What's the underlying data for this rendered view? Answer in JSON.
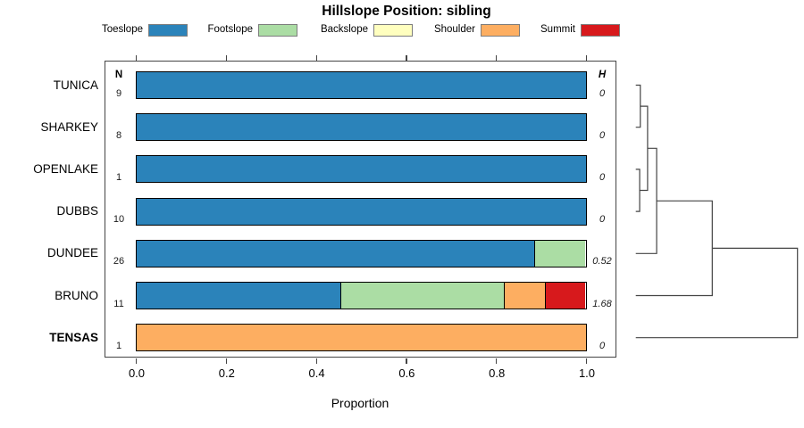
{
  "title": "Hillslope Position: sibling",
  "axis": {
    "xlabel": "Proportion",
    "tick_labels": [
      "0.0",
      "0.2",
      "0.4",
      "0.6",
      "0.8",
      "1.0"
    ]
  },
  "columns": {
    "n_header": "N",
    "h_header": "H"
  },
  "legend": {
    "items": [
      {
        "label": "Toeslope",
        "color": "#2B83BA"
      },
      {
        "label": "Footslope",
        "color": "#ABDDA4"
      },
      {
        "label": "Backslope",
        "color": "#FFFFBF"
      },
      {
        "label": "Shoulder",
        "color": "#FDAE61"
      },
      {
        "label": "Summit",
        "color": "#D7191C"
      }
    ]
  },
  "chart_data": {
    "type": "bar",
    "stacked": true,
    "orientation": "horizontal",
    "title": "Hillslope Position: sibling",
    "xlabel": "Proportion",
    "xlim": [
      0,
      1
    ],
    "xticks": [
      0.0,
      0.2,
      0.4,
      0.6,
      0.8,
      1.0
    ],
    "grid": false,
    "categories": [
      "Toeslope",
      "Footslope",
      "Backslope",
      "Shoulder",
      "Summit"
    ],
    "category_colors": {
      "Toeslope": "#2B83BA",
      "Footslope": "#ABDDA4",
      "Backslope": "#FFFFBF",
      "Shoulder": "#FDAE61",
      "Summit": "#D7191C"
    },
    "rows": [
      {
        "label": "TUNICA",
        "bold": false,
        "n": "9",
        "h": "0",
        "segments": [
          {
            "category": "Toeslope",
            "proportion": 1.0
          }
        ]
      },
      {
        "label": "SHARKEY",
        "bold": false,
        "n": "8",
        "h": "0",
        "segments": [
          {
            "category": "Toeslope",
            "proportion": 1.0
          }
        ]
      },
      {
        "label": "OPENLAKE",
        "bold": false,
        "n": "1",
        "h": "0",
        "segments": [
          {
            "category": "Toeslope",
            "proportion": 1.0
          }
        ]
      },
      {
        "label": "DUBBS",
        "bold": false,
        "n": "10",
        "h": "0",
        "segments": [
          {
            "category": "Toeslope",
            "proportion": 1.0
          }
        ]
      },
      {
        "label": "DUNDEE",
        "bold": false,
        "n": "26",
        "h": "0.52",
        "segments": [
          {
            "category": "Toeslope",
            "proportion": 0.885
          },
          {
            "category": "Footslope",
            "proportion": 0.115
          }
        ]
      },
      {
        "label": "BRUNO",
        "bold": false,
        "n": "11",
        "h": "1.68",
        "segments": [
          {
            "category": "Toeslope",
            "proportion": 0.455
          },
          {
            "category": "Footslope",
            "proportion": 0.363
          },
          {
            "category": "Shoulder",
            "proportion": 0.091
          },
          {
            "category": "Summit",
            "proportion": 0.091
          }
        ]
      },
      {
        "label": "TENSAS",
        "bold": true,
        "n": "1",
        "h": "0",
        "segments": [
          {
            "category": "Shoulder",
            "proportion": 1.0
          }
        ]
      }
    ],
    "dendrogram": {
      "leaf_order": [
        "TUNICA",
        "SHARKEY",
        "OPENLAKE",
        "DUBBS",
        "DUNDEE",
        "BRUNO",
        "TENSAS"
      ],
      "merges": [
        {
          "a": "L0",
          "b": "L1",
          "height": 0.028
        },
        {
          "a": "L2",
          "b": "L3",
          "height": 0.024
        },
        {
          "a": "M0",
          "b": "M1",
          "height": 0.073
        },
        {
          "a": "M2",
          "b": "L4",
          "height": 0.129
        },
        {
          "a": "M3",
          "b": "L5",
          "height": 0.473
        },
        {
          "a": "M4",
          "b": "L6",
          "height": 1.0
        }
      ]
    }
  }
}
